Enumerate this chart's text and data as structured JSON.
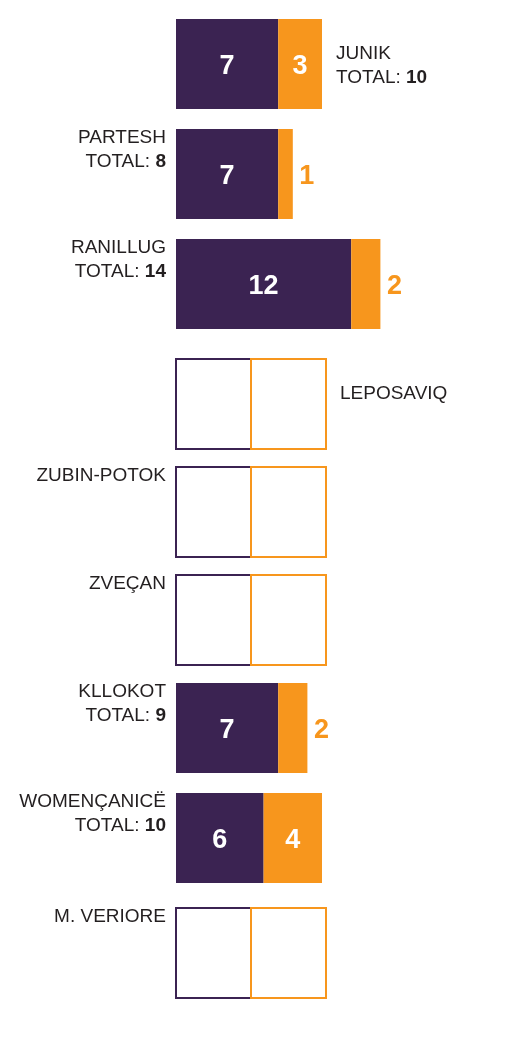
{
  "chart_data": {
    "type": "bar",
    "orientation": "horizontal",
    "stacked": true,
    "categories": [
      "JUNIK",
      "PARTESH",
      "RANILLUG",
      "LEPOSAVIQ",
      "ZUBIN-POTOK",
      "ZVEÇAN",
      "KLLOKOT",
      "WOMENÇANICË",
      "M. VERIORE"
    ],
    "series": [
      {
        "color": "#3b2352",
        "values": [
          7,
          7,
          12,
          null,
          null,
          null,
          7,
          6,
          null
        ]
      },
      {
        "color": "#f7961d",
        "values": [
          3,
          1,
          2,
          null,
          null,
          null,
          2,
          4,
          null
        ]
      }
    ],
    "data_labels": true,
    "totals": [
      "TOTAL: 10",
      "TOTAL: 8",
      "TOTAL: 14",
      null,
      null,
      null,
      "TOTAL: 9",
      "TOTAL: 10",
      null
    ]
  }
}
